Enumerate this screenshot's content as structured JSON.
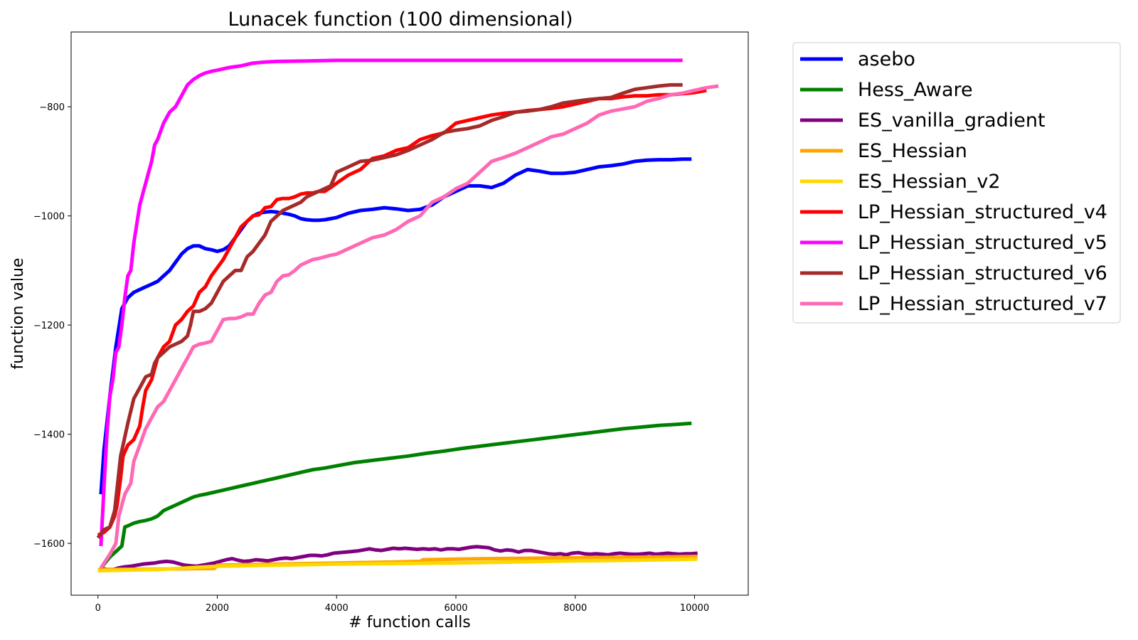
{
  "chart_data": {
    "type": "line",
    "title": "Lunacek function (100 dimensional)",
    "xlabel": "# function calls",
    "ylabel": "function value",
    "xlim": [
      -450,
      10900
    ],
    "ylim": [
      -1695,
      -663
    ],
    "xticks": [
      0,
      2000,
      4000,
      6000,
      8000,
      10000
    ],
    "yticks": [
      -1600,
      -1400,
      -1200,
      -1000,
      -800
    ],
    "grid": false,
    "legend_position": "outside-right-top",
    "series": [
      {
        "name": "asebo",
        "color": "#0000ff",
        "x": [
          50,
          100,
          200,
          300,
          400,
          500,
          600,
          700,
          800,
          900,
          1000,
          1100,
          1200,
          1300,
          1400,
          1500,
          1600,
          1700,
          1800,
          1900,
          2000,
          2100,
          2200,
          2300,
          2400,
          2500,
          2600,
          2700,
          2800,
          2900,
          3000,
          3100,
          3200,
          3300,
          3400,
          3500,
          3600,
          3700,
          3800,
          3900,
          4000,
          4200,
          4400,
          4600,
          4800,
          5000,
          5200,
          5400,
          5600,
          5800,
          6000,
          6200,
          6400,
          6600,
          6800,
          7000,
          7200,
          7400,
          7600,
          7800,
          8000,
          8200,
          8400,
          8600,
          8800,
          9000,
          9200,
          9400,
          9600,
          9800,
          9950
        ],
        "y": [
          -1510,
          -1430,
          -1330,
          -1240,
          -1170,
          -1150,
          -1140,
          -1135,
          -1130,
          -1125,
          -1120,
          -1110,
          -1100,
          -1085,
          -1070,
          -1060,
          -1055,
          -1055,
          -1060,
          -1062,
          -1065,
          -1062,
          -1055,
          -1040,
          -1025,
          -1010,
          -1000,
          -995,
          -993,
          -992,
          -993,
          -995,
          -997,
          -1000,
          -1005,
          -1007,
          -1008,
          -1008,
          -1007,
          -1005,
          -1003,
          -995,
          -990,
          -988,
          -985,
          -987,
          -990,
          -988,
          -980,
          -965,
          -955,
          -945,
          -945,
          -948,
          -940,
          -925,
          -915,
          -918,
          -922,
          -922,
          -920,
          -915,
          -910,
          -908,
          -905,
          -900,
          -898,
          -897,
          -897,
          -896,
          -896
        ]
      },
      {
        "name": "Hess_Aware",
        "color": "#008000",
        "x": [
          50,
          200,
          300,
          400,
          450,
          500,
          600,
          700,
          800,
          900,
          1000,
          1050,
          1100,
          1200,
          1300,
          1400,
          1500,
          1600,
          1700,
          1800,
          2000,
          2200,
          2400,
          2600,
          2800,
          3000,
          3200,
          3400,
          3600,
          3800,
          4000,
          4300,
          4600,
          4900,
          5200,
          5500,
          5800,
          6100,
          6400,
          6700,
          7000,
          7300,
          7600,
          7900,
          8200,
          8500,
          8800,
          9100,
          9400,
          9700,
          9950
        ],
        "y": [
          -1645,
          -1625,
          -1615,
          -1605,
          -1570,
          -1568,
          -1563,
          -1560,
          -1558,
          -1555,
          -1550,
          -1545,
          -1540,
          -1535,
          -1530,
          -1525,
          -1520,
          -1515,
          -1512,
          -1510,
          -1505,
          -1500,
          -1495,
          -1490,
          -1485,
          -1480,
          -1475,
          -1470,
          -1465,
          -1462,
          -1458,
          -1452,
          -1448,
          -1444,
          -1440,
          -1435,
          -1431,
          -1426,
          -1422,
          -1418,
          -1414,
          -1410,
          -1406,
          -1402,
          -1398,
          -1394,
          -1390,
          -1387,
          -1384,
          -1382,
          -1380
        ]
      },
      {
        "name": "ES_vanilla_gradient",
        "color": "#800080",
        "x": [
          50,
          150,
          250,
          350,
          450,
          550,
          650,
          750,
          850,
          950,
          1050,
          1150,
          1250,
          1350,
          1450,
          1550,
          1650,
          1750,
          1850,
          1950,
          2050,
          2150,
          2250,
          2350,
          2450,
          2550,
          2650,
          2750,
          2850,
          2950,
          3050,
          3150,
          3250,
          3350,
          3450,
          3550,
          3650,
          3750,
          3850,
          3950,
          4050,
          4150,
          4250,
          4350,
          4450,
          4550,
          4650,
          4750,
          4850,
          4950,
          5050,
          5150,
          5250,
          5350,
          5450,
          5550,
          5650,
          5750,
          5850,
          5950,
          6050,
          6150,
          6250,
          6350,
          6450,
          6550,
          6650,
          6750,
          6850,
          6950,
          7050,
          7150,
          7250,
          7350,
          7450,
          7550,
          7650,
          7750,
          7850,
          7950,
          8050,
          8150,
          8250,
          8350,
          8450,
          8550,
          8650,
          8750,
          8850,
          8950,
          9050,
          9150,
          9250,
          9350,
          9450,
          9550,
          9650,
          9750,
          9850,
          9950,
          10050
        ],
        "y": [
          -1645,
          -1648,
          -1648,
          -1645,
          -1643,
          -1642,
          -1640,
          -1638,
          -1637,
          -1636,
          -1634,
          -1633,
          -1634,
          -1637,
          -1640,
          -1641,
          -1642,
          -1640,
          -1638,
          -1636,
          -1633,
          -1630,
          -1628,
          -1631,
          -1633,
          -1632,
          -1630,
          -1631,
          -1632,
          -1630,
          -1628,
          -1627,
          -1628,
          -1626,
          -1624,
          -1622,
          -1622,
          -1623,
          -1621,
          -1618,
          -1617,
          -1616,
          -1615,
          -1614,
          -1612,
          -1610,
          -1612,
          -1613,
          -1611,
          -1609,
          -1610,
          -1609,
          -1610,
          -1611,
          -1610,
          -1611,
          -1610,
          -1612,
          -1610,
          -1610,
          -1611,
          -1609,
          -1607,
          -1606,
          -1607,
          -1608,
          -1612,
          -1614,
          -1612,
          -1613,
          -1616,
          -1613,
          -1613,
          -1615,
          -1617,
          -1619,
          -1620,
          -1619,
          -1621,
          -1618,
          -1617,
          -1619,
          -1620,
          -1619,
          -1620,
          -1621,
          -1619,
          -1618,
          -1619,
          -1620,
          -1620,
          -1619,
          -1618,
          -1620,
          -1619,
          -1618,
          -1619,
          -1620,
          -1619,
          -1619,
          -1618
        ]
      },
      {
        "name": "ES_Hessian",
        "color": "#ffa500",
        "x": [
          0,
          1000,
          1950,
          2000,
          3000,
          4000,
          5000,
          5400,
          5450,
          6500,
          7500,
          8500,
          9500,
          10050
        ],
        "y": [
          -1648,
          -1647,
          -1646,
          -1640,
          -1638,
          -1636,
          -1634,
          -1633,
          -1630,
          -1628,
          -1627,
          -1626,
          -1625,
          -1624
        ]
      },
      {
        "name": "ES_Hessian_v2",
        "color": "#ffd700",
        "x": [
          0,
          1000,
          2000,
          3000,
          4000,
          5000,
          6000,
          7000,
          8000,
          9000,
          10050
        ],
        "y": [
          -1650,
          -1648,
          -1642,
          -1640,
          -1638,
          -1637,
          -1636,
          -1634,
          -1632,
          -1631,
          -1629
        ]
      },
      {
        "name": "LP_Hessian_structured_v4",
        "color": "#ff0000",
        "x": [
          0,
          100,
          200,
          280,
          320,
          380,
          420,
          500,
          600,
          700,
          750,
          800,
          900,
          950,
          1000,
          1100,
          1200,
          1300,
          1400,
          1500,
          1600,
          1700,
          1800,
          1900,
          2000,
          2100,
          2200,
          2300,
          2400,
          2450,
          2500,
          2600,
          2700,
          2800,
          2900,
          3000,
          3100,
          3200,
          3300,
          3400,
          3500,
          3600,
          3700,
          3800,
          3900,
          4000,
          4200,
          4400,
          4600,
          4800,
          5000,
          5200,
          5400,
          5600,
          5800,
          6000,
          6200,
          6400,
          6600,
          6800,
          7000,
          7200,
          7400,
          7600,
          7800,
          8000,
          8200,
          8400,
          8600,
          8800,
          9000,
          9200,
          9400,
          9600,
          9800,
          10000,
          10200
        ],
        "y": [
          -1585,
          -1580,
          -1570,
          -1550,
          -1530,
          -1480,
          -1440,
          -1420,
          -1410,
          -1385,
          -1350,
          -1320,
          -1300,
          -1280,
          -1260,
          -1240,
          -1230,
          -1200,
          -1190,
          -1175,
          -1165,
          -1140,
          -1130,
          -1110,
          -1095,
          -1080,
          -1060,
          -1040,
          -1020,
          -1015,
          -1010,
          -1000,
          -998,
          -985,
          -983,
          -970,
          -968,
          -968,
          -965,
          -960,
          -958,
          -958,
          -955,
          -955,
          -948,
          -940,
          -925,
          -915,
          -895,
          -890,
          -880,
          -875,
          -860,
          -853,
          -848,
          -830,
          -825,
          -820,
          -815,
          -812,
          -810,
          -807,
          -805,
          -803,
          -800,
          -795,
          -790,
          -785,
          -785,
          -782,
          -780,
          -780,
          -778,
          -778,
          -776,
          -774,
          -770
        ]
      },
      {
        "name": "LP_Hessian_structured_v5",
        "color": "#ff00ff",
        "x": [
          50,
          100,
          150,
          200,
          250,
          300,
          350,
          400,
          450,
          500,
          550,
          600,
          700,
          800,
          900,
          950,
          1000,
          1100,
          1200,
          1300,
          1400,
          1500,
          1600,
          1700,
          1800,
          1900,
          2000,
          2200,
          2400,
          2600,
          2800,
          3000,
          3500,
          4000,
          5000,
          6000,
          7000,
          8000,
          9000,
          9800
        ],
        "y": [
          -1605,
          -1500,
          -1400,
          -1330,
          -1300,
          -1250,
          -1240,
          -1200,
          -1150,
          -1110,
          -1100,
          -1050,
          -980,
          -940,
          -900,
          -870,
          -860,
          -830,
          -810,
          -800,
          -780,
          -760,
          -750,
          -743,
          -738,
          -735,
          -733,
          -728,
          -725,
          -720,
          -718,
          -717,
          -716,
          -715,
          -715,
          -715,
          -715,
          -715,
          -715,
          -715
        ]
      },
      {
        "name": "LP_Hessian_structured_v6",
        "color": "#a52a2a",
        "x": [
          0,
          100,
          200,
          280,
          320,
          380,
          420,
          500,
          600,
          700,
          800,
          900,
          950,
          1000,
          1100,
          1200,
          1300,
          1400,
          1500,
          1550,
          1600,
          1700,
          1800,
          1900,
          2000,
          2100,
          2200,
          2300,
          2400,
          2500,
          2600,
          2700,
          2800,
          2900,
          3000,
          3100,
          3200,
          3300,
          3400,
          3500,
          3600,
          3700,
          3800,
          3900,
          4000,
          4200,
          4400,
          4600,
          4800,
          5000,
          5200,
          5400,
          5600,
          5800,
          6000,
          6200,
          6400,
          6600,
          6800,
          7000,
          7200,
          7400,
          7600,
          7800,
          8000,
          8200,
          8400,
          8600,
          8800,
          9000,
          9200,
          9400,
          9600,
          9800
        ],
        "y": [
          -1590,
          -1575,
          -1570,
          -1540,
          -1500,
          -1440,
          -1420,
          -1380,
          -1335,
          -1315,
          -1295,
          -1290,
          -1270,
          -1260,
          -1250,
          -1240,
          -1235,
          -1230,
          -1220,
          -1200,
          -1175,
          -1175,
          -1170,
          -1160,
          -1140,
          -1120,
          -1110,
          -1100,
          -1100,
          -1075,
          -1065,
          -1050,
          -1035,
          -1010,
          -1000,
          -990,
          -985,
          -980,
          -975,
          -965,
          -960,
          -955,
          -950,
          -945,
          -920,
          -910,
          -900,
          -898,
          -893,
          -888,
          -880,
          -870,
          -860,
          -847,
          -843,
          -840,
          -835,
          -825,
          -818,
          -810,
          -808,
          -805,
          -800,
          -793,
          -790,
          -787,
          -785,
          -783,
          -775,
          -768,
          -765,
          -762,
          -760,
          -760
        ]
      },
      {
        "name": "LP_Hessian_structured_v7",
        "color": "#ff69b4",
        "x": [
          50,
          200,
          300,
          350,
          400,
          450,
          500,
          550,
          600,
          700,
          800,
          900,
          1000,
          1100,
          1200,
          1300,
          1400,
          1500,
          1600,
          1700,
          1800,
          1900,
          2000,
          2100,
          2200,
          2300,
          2400,
          2500,
          2600,
          2700,
          2800,
          2900,
          3000,
          3100,
          3200,
          3300,
          3400,
          3500,
          3600,
          3700,
          3800,
          3900,
          4000,
          4200,
          4400,
          4600,
          4800,
          5000,
          5200,
          5400,
          5600,
          5800,
          6000,
          6200,
          6400,
          6600,
          6800,
          7000,
          7200,
          7400,
          7600,
          7800,
          8000,
          8200,
          8400,
          8600,
          8800,
          9000,
          9200,
          9400,
          9600,
          9800,
          10000,
          10200,
          10400
        ],
        "y": [
          -1645,
          -1620,
          -1600,
          -1550,
          -1530,
          -1510,
          -1500,
          -1490,
          -1450,
          -1420,
          -1390,
          -1370,
          -1350,
          -1340,
          -1320,
          -1300,
          -1280,
          -1260,
          -1240,
          -1235,
          -1233,
          -1230,
          -1210,
          -1190,
          -1188,
          -1188,
          -1185,
          -1180,
          -1180,
          -1160,
          -1145,
          -1140,
          -1120,
          -1110,
          -1108,
          -1100,
          -1090,
          -1085,
          -1080,
          -1078,
          -1075,
          -1072,
          -1070,
          -1060,
          -1050,
          -1040,
          -1035,
          -1025,
          -1010,
          -1000,
          -975,
          -965,
          -950,
          -940,
          -920,
          -900,
          -893,
          -885,
          -875,
          -865,
          -855,
          -850,
          -840,
          -830,
          -815,
          -808,
          -804,
          -800,
          -790,
          -785,
          -778,
          -775,
          -770,
          -765,
          -762
        ]
      }
    ]
  }
}
